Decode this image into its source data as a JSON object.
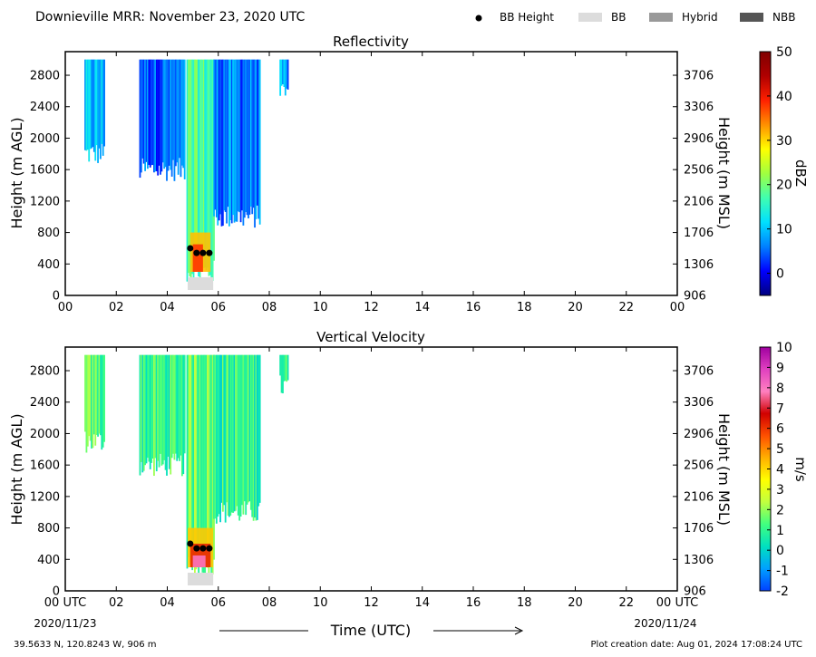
{
  "header": {
    "title": "Downieville MRR:  November 23, 2020 UTC",
    "legend": [
      {
        "label": "BB Height",
        "kind": "dot",
        "color": "#000000"
      },
      {
        "label": "BB",
        "kind": "box",
        "color": "#dcdcdc"
      },
      {
        "label": "Hybrid",
        "kind": "box",
        "color": "#999999"
      },
      {
        "label": "NBB",
        "kind": "box",
        "color": "#555555"
      }
    ]
  },
  "axes": {
    "x_ticks": [
      "00",
      "02",
      "04",
      "06",
      "08",
      "10",
      "12",
      "14",
      "16",
      "18",
      "20",
      "22",
      "00"
    ],
    "x_ticks_bottom": [
      "00 UTC",
      "02",
      "04",
      "06",
      "08",
      "10",
      "12",
      "14",
      "16",
      "18",
      "20",
      "22",
      "00 UTC"
    ],
    "xlim": [
      0,
      24
    ],
    "y_left_ticks": [
      "0",
      "400",
      "800",
      "1200",
      "1600",
      "2000",
      "2400",
      "2800"
    ],
    "y_right_ticks": [
      "906",
      "1306",
      "1706",
      "2106",
      "2506",
      "2906",
      "3306",
      "3706"
    ],
    "ylim": [
      0,
      3100
    ],
    "ylabel_left": "Height (m AGL)",
    "ylabel_right": "Height (m MSL)",
    "xlabel": "Time (UTC)",
    "date_start": "2020/11/23",
    "date_end": "2020/11/24"
  },
  "footer": {
    "location": "39.5633 N, 120.8243 W, 906 m",
    "creation": "Plot creation date: Aug 01, 2024 17:08:24 UTC"
  },
  "chart_data": [
    {
      "type": "heatmap",
      "title": "Reflectivity",
      "colorbar": {
        "label": "dBZ",
        "ticks": [
          "50",
          "40",
          "30",
          "20",
          "10",
          "0"
        ],
        "range": [
          -5,
          50
        ],
        "colors": [
          "#000080",
          "#0000ff",
          "#0080ff",
          "#00e0ff",
          "#40ffb0",
          "#a0ff40",
          "#ffff00",
          "#ff9000",
          "#ff2000",
          "#b00000",
          "#800000"
        ]
      },
      "columns": [
        {
          "t0": 0.75,
          "t1": 1.55,
          "base": 1800,
          "top": 3000,
          "value": 9
        },
        {
          "t0": 2.9,
          "t1": 4.65,
          "base": 1600,
          "top": 3000,
          "value": 5
        },
        {
          "t0": 4.75,
          "t1": 5.8,
          "base": 300,
          "top": 3000,
          "value": 17
        },
        {
          "t0": 5.8,
          "t1": 7.6,
          "base": 1000,
          "top": 3000,
          "value": 6
        },
        {
          "t0": 8.4,
          "t1": 8.75,
          "base": 2600,
          "top": 3000,
          "value": 7
        }
      ],
      "core": [
        {
          "t0": 4.9,
          "t1": 5.7,
          "base": 300,
          "top": 800,
          "value": 31
        },
        {
          "t0": 5.0,
          "t1": 5.4,
          "base": 300,
          "top": 650,
          "value": 38
        }
      ],
      "bb_height": [
        {
          "t": 4.9,
          "h": 600
        },
        {
          "t": 5.15,
          "h": 540
        },
        {
          "t": 5.4,
          "h": 540
        },
        {
          "t": 5.65,
          "h": 540
        }
      ],
      "bb_type": [
        {
          "t0": 4.8,
          "t1": 5.8,
          "kind": "BB"
        }
      ]
    },
    {
      "type": "heatmap",
      "title": "Vertical Velocity",
      "colorbar": {
        "label": "m/s",
        "ticks": [
          "10",
          "9",
          "8",
          "7",
          "6",
          "5",
          "4",
          "3",
          "2",
          "1",
          "0",
          "-1",
          "-2"
        ],
        "range": [
          -2,
          10
        ],
        "colors": [
          "#0040ff",
          "#00a0ff",
          "#00e0c0",
          "#40ff80",
          "#c0ff40",
          "#ffff00",
          "#ffb000",
          "#ff5000",
          "#d00000",
          "#ff80c0",
          "#e040c0",
          "#a000a0"
        ]
      },
      "columns": [
        {
          "t0": 0.75,
          "t1": 1.55,
          "base": 1900,
          "top": 3000,
          "value": 1.3
        },
        {
          "t0": 2.9,
          "t1": 4.65,
          "base": 1600,
          "top": 3000,
          "value": 1.0
        },
        {
          "t0": 4.75,
          "t1": 5.8,
          "base": 300,
          "top": 3000,
          "value": 1.6
        },
        {
          "t0": 5.8,
          "t1": 7.6,
          "base": 1000,
          "top": 3000,
          "value": 0.9
        },
        {
          "t0": 8.4,
          "t1": 8.75,
          "base": 2600,
          "top": 3000,
          "value": 0.8
        }
      ],
      "core": [
        {
          "t0": 4.8,
          "t1": 5.8,
          "base": 300,
          "top": 800,
          "value": 4.2
        },
        {
          "t0": 4.9,
          "t1": 5.7,
          "base": 300,
          "top": 600,
          "value": 6.2
        },
        {
          "t0": 5.0,
          "t1": 5.5,
          "base": 300,
          "top": 450,
          "value": 8.0
        }
      ],
      "bb_height": [
        {
          "t": 4.9,
          "h": 600
        },
        {
          "t": 5.15,
          "h": 540
        },
        {
          "t": 5.4,
          "h": 540
        },
        {
          "t": 5.65,
          "h": 540
        }
      ],
      "bb_type": [
        {
          "t0": 4.8,
          "t1": 5.8,
          "kind": "BB"
        }
      ]
    }
  ]
}
